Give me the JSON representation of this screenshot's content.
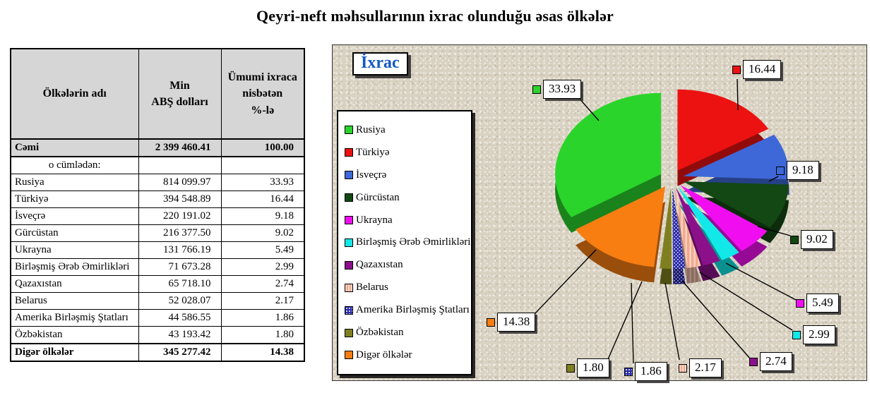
{
  "page_title": "Qeyri-neft məhsullarının ixrac olunduğu əsas ölkələr",
  "table": {
    "headers": [
      "Ölkələrin adı",
      "Min\nABŞ dolları",
      "Ümumi ixraca\nnisbətən\n%-lə"
    ],
    "rows": [
      {
        "name": "Cəmi",
        "amount": "2 399 460.41",
        "percent": "100.00",
        "style": "total"
      },
      {
        "name": "o cümlədən:",
        "amount": "",
        "percent": "",
        "style": "subheader"
      },
      {
        "name": "Rusiya",
        "amount": "814 099.97",
        "percent": "33.93",
        "style": ""
      },
      {
        "name": "Türkiyə",
        "amount": "394 548.89",
        "percent": "16.44",
        "style": ""
      },
      {
        "name": "İsveçrə",
        "amount": "220 191.02",
        "percent": "9.18",
        "style": ""
      },
      {
        "name": "Gürcüstan",
        "amount": "216 377.50",
        "percent": "9.02",
        "style": ""
      },
      {
        "name": "Ukrayna",
        "amount": "131 766.19",
        "percent": "5.49",
        "style": ""
      },
      {
        "name": "Birləşmiş Ərəb Əmirlikləri",
        "amount": "71 673.28",
        "percent": "2.99",
        "style": ""
      },
      {
        "name": "Qazaxıstan",
        "amount": "65 718.10",
        "percent": "2.74",
        "style": ""
      },
      {
        "name": "Belarus",
        "amount": "52 028.07",
        "percent": "2.17",
        "style": ""
      },
      {
        "name": "Amerika Birləşmiş Ştatları",
        "amount": "44 586.55",
        "percent": "1.86",
        "style": ""
      },
      {
        "name": "Özbəkistan",
        "amount": "43 193.42",
        "percent": "1.80",
        "style": ""
      },
      {
        "name": "Digər ölkələr",
        "amount": "345 277.42",
        "percent": "14.38",
        "style": "bold"
      }
    ]
  },
  "chart": {
    "floating_title": "İxrac",
    "background_color": "#D9D2C2",
    "title_color": "#1659C4"
  },
  "chart_data": {
    "type": "pie",
    "title": "İxrac",
    "style": "3d-exploded",
    "direction": "clockwise",
    "start_angle_deg": 237.85,
    "legend_position": "left",
    "series": [
      {
        "name": "Rusiya",
        "value": 33.93,
        "color": "#2BD42B"
      },
      {
        "name": "Türkiyə",
        "value": 16.44,
        "color": "#EC1212"
      },
      {
        "name": "İsveçrə",
        "value": 9.18,
        "color": "#3E68D8"
      },
      {
        "name": "Gürcüstan",
        "value": 9.02,
        "color": "#134713"
      },
      {
        "name": "Ukrayna",
        "value": 5.49,
        "color": "#F00EF0"
      },
      {
        "name": "Birləşmiş Ərəb Əmirlikləri",
        "value": 2.99,
        "color": "#12E8E8"
      },
      {
        "name": "Qazaxıstan",
        "value": 2.74,
        "color": "#8B118B"
      },
      {
        "name": "Belarus",
        "value": 2.17,
        "color": "#F2A98C",
        "pattern": "stripes"
      },
      {
        "name": "Amerika Birləşmiş Ştatları",
        "value": 1.86,
        "color": "#2A2AAC",
        "pattern": "dots"
      },
      {
        "name": "Özbəkistan",
        "value": 1.8,
        "color": "#7F7F21"
      },
      {
        "name": "Digər ölkələr",
        "value": 14.38,
        "color": "#F87E12"
      }
    ],
    "data_labels": [
      "33.93",
      "16.44",
      "9.18",
      "9.02",
      "5.49",
      "2.99",
      "2.74",
      "2.17",
      "1.86",
      "1.80",
      "14.38"
    ]
  }
}
